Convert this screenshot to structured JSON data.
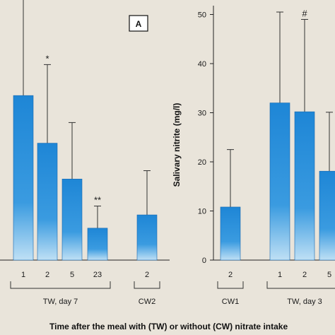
{
  "chart_data": [
    {
      "type": "bar",
      "panel_label": "A",
      "categories": [
        "1",
        "2",
        "5",
        "23",
        "2"
      ],
      "values": [
        33.5,
        23.8,
        16.5,
        6.5,
        9.2
      ],
      "errors": [
        22.5,
        16.0,
        11.5,
        4.5,
        9.0
      ],
      "significance": [
        "",
        "*",
        "",
        "**",
        ""
      ],
      "groups": [
        {
          "label": "TW, day 7",
          "indices": [
            0,
            1,
            2,
            3
          ]
        },
        {
          "label": "CW2",
          "indices": [
            4
          ]
        }
      ],
      "ylim": [
        0,
        53
      ]
    },
    {
      "type": "bar",
      "ylabel": "Salivary nitrite (mg/l)",
      "yticks": [
        0,
        10,
        20,
        30,
        40,
        50
      ],
      "ylim": [
        0,
        53
      ],
      "categories": [
        "2",
        "1",
        "2",
        "5"
      ],
      "values": [
        10.8,
        32.0,
        30.2,
        18.1
      ],
      "errors": [
        11.7,
        18.5,
        18.8,
        12.0
      ],
      "significance": [
        "",
        "",
        "#",
        ""
      ],
      "groups": [
        {
          "label": "CW1",
          "indices": [
            0
          ]
        },
        {
          "label": "TW, day 3",
          "indices": [
            1,
            2,
            3
          ]
        }
      ]
    }
  ],
  "xlabel": "Time after the meal with (TW) or without (CW) nitrate intake"
}
